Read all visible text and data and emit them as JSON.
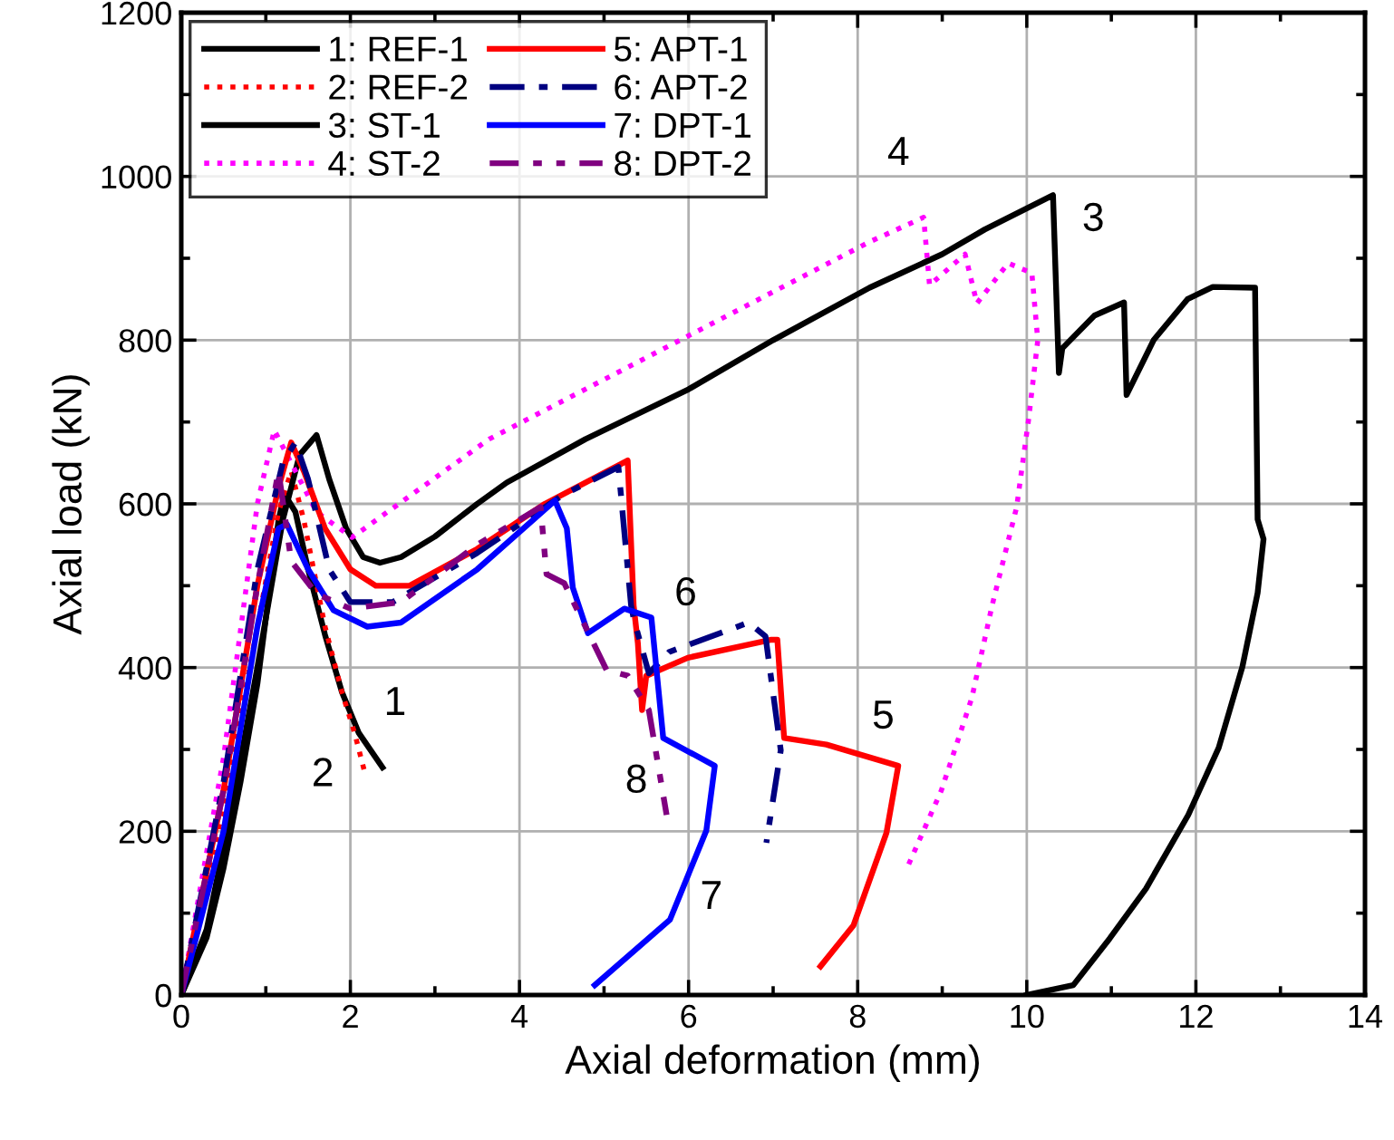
{
  "chart_data": {
    "type": "line",
    "xlabel": "Axial deformation (mm)",
    "ylabel": "Axial load (kN)",
    "xlim": [
      0,
      14
    ],
    "xticks": [
      0,
      2,
      4,
      6,
      8,
      10,
      12,
      14
    ],
    "ylim": [
      0,
      1200
    ],
    "yticks": [
      0,
      200,
      400,
      600,
      800,
      1000,
      1200
    ],
    "grid": true,
    "legend": "top left",
    "marker": "none",
    "series": [
      {
        "name": "1: REF-1",
        "color": "#000000",
        "line_style": "solid",
        "x": [
          0,
          0.3,
          0.5,
          0.7,
          0.9,
          1.05,
          1.15,
          1.22,
          1.35,
          1.5,
          1.7,
          1.9,
          2.1,
          2.38
        ],
        "values": [
          0,
          70,
          155,
          260,
          380,
          500,
          580,
          612,
          590,
          520,
          440,
          370,
          320,
          278
        ]
      },
      {
        "name": "2: REF-2",
        "color": "#ff0000",
        "line_style": "dotted",
        "x": [
          0,
          0.5,
          0.9,
          1.15,
          1.3,
          1.45,
          1.7,
          1.9,
          2.05,
          2.18
        ],
        "values": [
          0,
          230,
          450,
          590,
          640,
          580,
          450,
          370,
          320,
          268
        ]
      },
      {
        "name": "3: ST-1",
        "color": "#000000",
        "line_style": "solid",
        "x": [
          0,
          0.3,
          0.6,
          0.9,
          1.2,
          1.4,
          1.6,
          1.75,
          1.95,
          2.15,
          2.35,
          2.6,
          3.0,
          3.5,
          3.85,
          4.78,
          6,
          7,
          8.14,
          9,
          9.5,
          10.31,
          10.38,
          10.42,
          10.8,
          11.15,
          11.18,
          11.5,
          11.9,
          12.2,
          12.7,
          12.73,
          12.8,
          12.73,
          12.55,
          12.27,
          11.91,
          11.41,
          10.98,
          10.55,
          10.0
        ],
        "values": [
          0,
          80,
          230,
          400,
          580,
          660,
          684,
          630,
          570,
          535,
          528,
          535,
          560,
          600,
          626,
          679,
          740,
          800,
          864,
          905,
          935,
          977,
          760,
          790,
          830,
          846,
          733,
          800,
          850,
          865,
          864,
          581,
          557,
          491,
          401,
          302,
          220,
          130,
          69,
          12,
          0
        ]
      },
      {
        "name": "4: ST-2",
        "color": "#ff00ff",
        "line_style": "dotted",
        "x": [
          0,
          0.5,
          0.9,
          1.1,
          1.3,
          1.6,
          2.02,
          3.64,
          8.14,
          8.78,
          8.85,
          9.27,
          9.41,
          9.78,
          10.06,
          10.13,
          10.02,
          9.88,
          9.59,
          9.35,
          8.99,
          8.57
        ],
        "values": [
          0,
          290,
          600,
          690,
          650,
          590,
          559,
          679,
          920,
          950,
          867,
          905,
          845,
          894,
          882,
          800,
          702,
          596,
          476,
          363,
          250,
          152
        ]
      },
      {
        "name": "5: APT-1",
        "color": "#ff0000",
        "line_style": "solid",
        "x": [
          0,
          0.5,
          0.9,
          1.15,
          1.3,
          1.45,
          1.7,
          2.0,
          2.3,
          2.7,
          3.5,
          4.3,
          5.28,
          5.35,
          5.4,
          5.45,
          5.5,
          5.99,
          6.98,
          7.05,
          7.13,
          7.63,
          8.48,
          8.34,
          7.95,
          7.56
        ],
        "values": [
          0,
          250,
          500,
          620,
          675,
          640,
          570,
          520,
          500,
          500,
          545,
          600,
          653,
          476,
          430,
          348,
          390,
          412,
          434,
          434,
          314,
          306,
          280,
          198,
          85,
          35
        ]
      },
      {
        "name": "6: APT-2",
        "color": "#000080",
        "line_style": "dashdot",
        "x": [
          0,
          0.5,
          0.9,
          1.2,
          1.35,
          1.5,
          1.75,
          2.0,
          2.5,
          3.5,
          4.5,
          5.17,
          5.32,
          5.35,
          5.53,
          5.77,
          6.71,
          6.91,
          7.09,
          6.92
        ],
        "values": [
          0,
          260,
          520,
          650,
          675,
          630,
          520,
          480,
          480,
          540,
          610,
          645,
          476,
          460,
          393,
          419,
          455,
          438,
          299,
          186
        ]
      },
      {
        "name": "7: DPT-1",
        "color": "#0000ff",
        "line_style": "solid",
        "x": [
          0,
          0.5,
          0.9,
          1.15,
          1.25,
          1.5,
          1.8,
          2.2,
          2.6,
          3.5,
          4.42,
          4.56,
          4.63,
          4.81,
          5.24,
          5.56,
          5.7,
          6.31,
          6.21,
          5.78,
          4.89
        ],
        "values": [
          0,
          200,
          450,
          570,
          575,
          520,
          470,
          450,
          455,
          520,
          604,
          570,
          498,
          442,
          472,
          461,
          314,
          280,
          201,
          92,
          12
        ]
      },
      {
        "name": "8: DPT-2",
        "color": "#800080",
        "line_style": "dashdotdot",
        "x": [
          0,
          0.5,
          0.9,
          1.15,
          1.3,
          1.6,
          2.0,
          2.6,
          3.5,
          4.25,
          4.32,
          4.53,
          5.03,
          5.28,
          5.53,
          5.74
        ],
        "values": [
          0,
          250,
          500,
          640,
          530,
          490,
          472,
          480,
          550,
          596,
          514,
          503,
          397,
          390,
          348,
          220
        ]
      }
    ],
    "annotations": [
      "1",
      "2",
      "3",
      "4",
      "5",
      "6",
      "7",
      "8"
    ]
  }
}
